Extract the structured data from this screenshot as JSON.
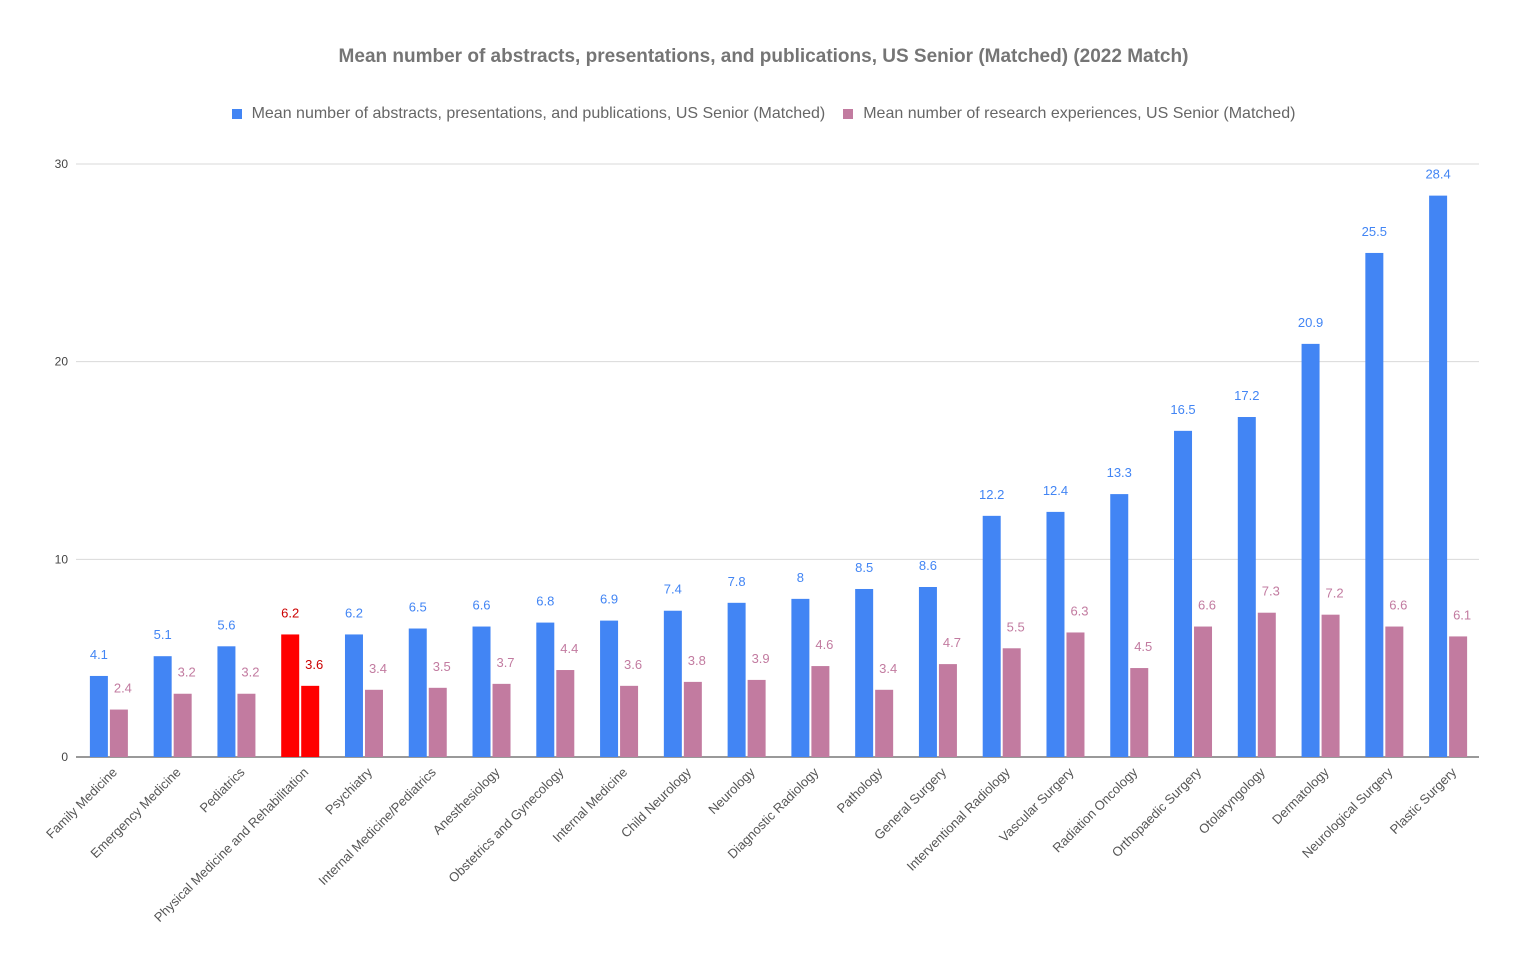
{
  "chart_data": {
    "type": "bar",
    "title": "Mean number of abstracts, presentations, and publications, US Senior (Matched) (2022 Match)",
    "xlabel": "",
    "ylabel": "",
    "ylim": [
      0,
      30
    ],
    "yticks": [
      "0",
      "10",
      "20",
      "30"
    ],
    "grid": true,
    "legend_position": "top",
    "categories": [
      "Family Medicine",
      "Emergency Medicine",
      "Pediatrics",
      "Physical Medicine and Rehabilitation",
      "Psychiatry",
      "Internal Medicine/Pediatrics",
      "Anesthesiology",
      "Obstetrics and Gynecology",
      "Internal Medicine",
      "Child Neurology",
      "Neurology",
      "Diagnostic Radiology",
      "Pathology",
      "General Surgery",
      "Interventional Radiology",
      "Vascular Surgery",
      "Radiation Oncology",
      "Orthopaedic Surgery",
      "Otolaryngology",
      "Dermatology",
      "Neurological Surgery",
      "Plastic Surgery"
    ],
    "series": [
      {
        "name": "Mean number of abstracts, presentations, and publications, US Senior (Matched)",
        "color": "#4285f4",
        "values": [
          4.1,
          5.1,
          5.6,
          6.2,
          6.2,
          6.5,
          6.6,
          6.8,
          6.9,
          7.4,
          7.8,
          8,
          8.5,
          8.6,
          12.2,
          12.4,
          13.3,
          16.5,
          17.2,
          20.9,
          25.5,
          28.4
        ]
      },
      {
        "name": "Mean number of research experiences, US Senior (Matched)",
        "color": "#c27ba0",
        "values": [
          2.4,
          3.2,
          3.2,
          3.6,
          3.4,
          3.5,
          3.7,
          4.4,
          3.6,
          3.8,
          3.9,
          4.6,
          3.4,
          4.7,
          5.5,
          6.3,
          4.5,
          6.6,
          7.3,
          7.2,
          6.6,
          6.1
        ]
      }
    ],
    "highlight": {
      "category": "Physical Medicine and Rehabilitation",
      "color": "#ff0000",
      "label_color": "#cc0000"
    }
  }
}
